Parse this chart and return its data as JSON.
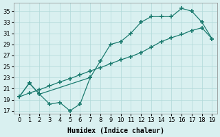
{
  "x_upper": [
    0,
    1,
    2,
    7,
    8,
    9,
    10,
    11,
    12,
    13,
    14,
    15,
    16,
    17,
    18,
    19
  ],
  "y_upper": [
    19.5,
    22,
    20,
    23,
    26,
    29,
    29.5,
    31,
    33,
    34,
    34,
    34,
    35.5,
    35,
    33,
    30
  ],
  "x_loop_bottom": [
    0,
    1,
    2,
    3,
    4,
    5,
    6,
    7
  ],
  "y_loop_bottom": [
    19.5,
    22,
    20,
    18.2,
    18.5,
    17,
    18.2,
    23
  ],
  "x_diag": [
    0,
    1,
    2,
    3,
    4,
    5,
    6,
    7,
    8,
    9,
    10,
    11,
    12,
    13,
    14,
    15,
    16,
    17,
    18,
    19
  ],
  "y_diag": [
    19.5,
    20.2,
    20.8,
    21.5,
    22.2,
    22.8,
    23.5,
    24.2,
    24.8,
    25.5,
    26.2,
    26.8,
    27.5,
    28.5,
    29.5,
    30.2,
    30.8,
    31.5,
    32.0,
    30
  ],
  "xlabel": "Humidex (Indice chaleur)",
  "ylabel_ticks": [
    17,
    19,
    21,
    23,
    25,
    27,
    29,
    31,
    33,
    35
  ],
  "xlim": [
    -0.5,
    19.5
  ],
  "ylim": [
    16.5,
    36.5
  ],
  "xticks": [
    0,
    1,
    2,
    3,
    4,
    5,
    6,
    7,
    8,
    9,
    10,
    11,
    12,
    13,
    14,
    15,
    16,
    17,
    18,
    19
  ],
  "line_color": "#1a7a6e",
  "bg_color": "#d9f0f0",
  "grid_color": "#b0d8d8",
  "figsize": [
    3.2,
    2.0
  ],
  "dpi": 100
}
